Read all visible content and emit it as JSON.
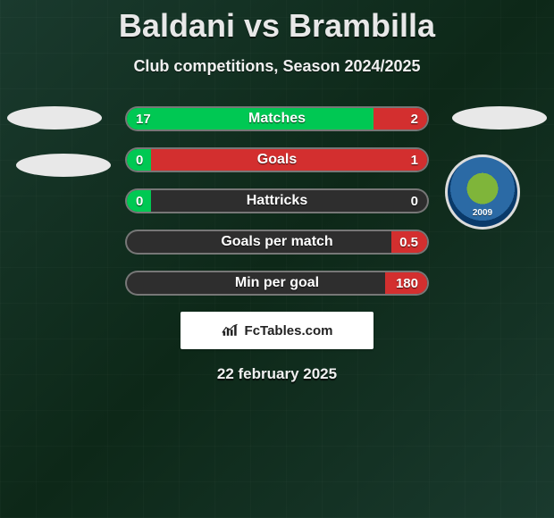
{
  "title": "Baldani vs Brambilla",
  "subtitle": "Club competitions, Season 2024/2025",
  "date": "22 february 2025",
  "footer_brand": "FcTables.com",
  "crest_year": "2009",
  "bar_style": {
    "track_bg": "#2e2e2e",
    "border_color": "rgba(180,180,180,0.55)",
    "left_fill": "#00c853",
    "right_fill": "#d32f2f",
    "text_color": "#ffffff"
  },
  "rows": [
    {
      "label": "Matches",
      "left": "17",
      "right": "2",
      "left_pct": 82,
      "right_pct": 18
    },
    {
      "label": "Goals",
      "left": "0",
      "right": "1",
      "left_pct": 8,
      "right_pct": 92
    },
    {
      "label": "Hattricks",
      "left": "0",
      "right": "0",
      "left_pct": 8,
      "right_pct": 0
    },
    {
      "label": "Goals per match",
      "left": "",
      "right": "0.5",
      "left_pct": 0,
      "right_pct": 12
    },
    {
      "label": "Min per goal",
      "left": "",
      "right": "180",
      "left_pct": 0,
      "right_pct": 14
    }
  ]
}
